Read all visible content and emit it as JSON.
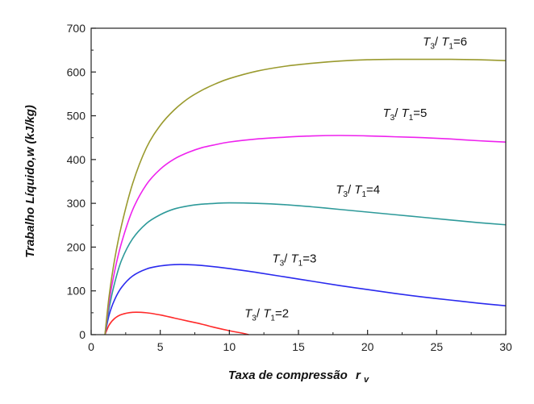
{
  "chart_data": {
    "type": "line",
    "xlabel_main": "Taxa de compressão",
    "xlabel_var": "r",
    "xlabel_sub": "v",
    "ylabel": "Trabalho Líquido,w (kJ/kg)",
    "xlim": [
      0,
      30
    ],
    "ylim": [
      0,
      700
    ],
    "xticks": [
      0,
      5,
      10,
      15,
      20,
      25,
      30
    ],
    "yticks": [
      0,
      100,
      200,
      300,
      400,
      500,
      600,
      700
    ],
    "grid": false,
    "series": [
      {
        "name": "T3/T1=2",
        "ratio": "2",
        "color": "#ff2a2a",
        "x": [
          1.0,
          1.3,
          1.7,
          2.2,
          3.0,
          4.0,
          5.0,
          6.0,
          7.0,
          8.0,
          9.0,
          10.0,
          11.0,
          11.4
        ],
        "y": [
          0,
          22,
          37,
          46,
          51,
          50,
          45,
          38,
          31,
          24,
          16,
          9,
          3,
          0
        ]
      },
      {
        "name": "T3/T1=3",
        "ratio": "3",
        "color": "#2a2aee",
        "x": [
          1.0,
          1.3,
          1.7,
          2.2,
          3.0,
          4.0,
          5.0,
          6.0,
          7.0,
          8.0,
          10.0,
          12.0,
          14.0,
          16.0,
          18.0,
          20.0,
          22.0,
          24.0,
          26.0,
          28.0,
          30.0
        ],
        "y": [
          0,
          45,
          80,
          108,
          134,
          150,
          157,
          160,
          160,
          158,
          151,
          142,
          132,
          122,
          112,
          103,
          94,
          86,
          79,
          72,
          66
        ]
      },
      {
        "name": "T3/T1=4",
        "ratio": "4",
        "color": "#2e9a9a",
        "x": [
          1.0,
          1.3,
          1.7,
          2.2,
          3.0,
          4.0,
          5.0,
          6.0,
          7.0,
          8.0,
          9.0,
          10.0,
          12.0,
          14.0,
          16.0,
          18.0,
          20.0,
          22.0,
          24.0,
          26.0,
          28.0,
          30.0
        ],
        "y": [
          0,
          60,
          118,
          170,
          219,
          254,
          274,
          287,
          294,
          298,
          300,
          301,
          300,
          297,
          292,
          286,
          280,
          274,
          268,
          262,
          256,
          251
        ]
      },
      {
        "name": "T3/T1=5",
        "ratio": "5",
        "color": "#ee22ee",
        "x": [
          1.0,
          1.3,
          1.7,
          2.2,
          3.0,
          4.0,
          5.0,
          6.0,
          7.0,
          8.0,
          9.0,
          10.0,
          12.0,
          14.0,
          16.0,
          18.0,
          20.0,
          22.0,
          24.0,
          26.0,
          28.0,
          30.0
        ],
        "y": [
          0,
          75,
          145,
          210,
          285,
          343,
          378,
          401,
          416,
          427,
          434,
          440,
          447,
          451,
          454,
          455,
          454,
          452,
          450,
          447,
          443,
          440
        ]
      },
      {
        "name": "T3/T1=6",
        "ratio": "6",
        "color": "#9a9a2e",
        "x": [
          1.0,
          1.3,
          1.7,
          2.2,
          3.0,
          4.0,
          5.0,
          6.0,
          7.0,
          8.0,
          9.0,
          10.0,
          12.0,
          14.0,
          16.0,
          18.0,
          20.0,
          22.0,
          24.0,
          26.0,
          28.0,
          30.0
        ],
        "y": [
          0,
          88,
          172,
          250,
          345,
          427,
          478,
          513,
          539,
          558,
          573,
          585,
          602,
          613,
          620,
          625,
          628,
          629,
          629,
          629,
          628,
          626
        ]
      }
    ],
    "labels": [
      {
        "text_a": "T",
        "sub_a": "3",
        "sep": "/ ",
        "text_b": "T",
        "sub_b": "1",
        "eq": "=2",
        "x": 12.7,
        "y": 40
      },
      {
        "text_a": "T",
        "sub_a": "3",
        "sep": "/ ",
        "text_b": "T",
        "sub_b": "1",
        "eq": "=3",
        "x": 14.7,
        "y": 165
      },
      {
        "text_a": "T",
        "sub_a": "3",
        "sep": "/ ",
        "text_b": "T",
        "sub_b": "1",
        "eq": "=4",
        "x": 19.3,
        "y": 322
      },
      {
        "text_a": "T",
        "sub_a": "3",
        "sep": "/ ",
        "text_b": "T",
        "sub_b": "1",
        "eq": "=5",
        "x": 22.7,
        "y": 497
      },
      {
        "text_a": "T",
        "sub_a": "3",
        "sep": "/ ",
        "text_b": "T",
        "sub_b": "1",
        "eq": "=6",
        "x": 25.6,
        "y": 660
      }
    ]
  }
}
